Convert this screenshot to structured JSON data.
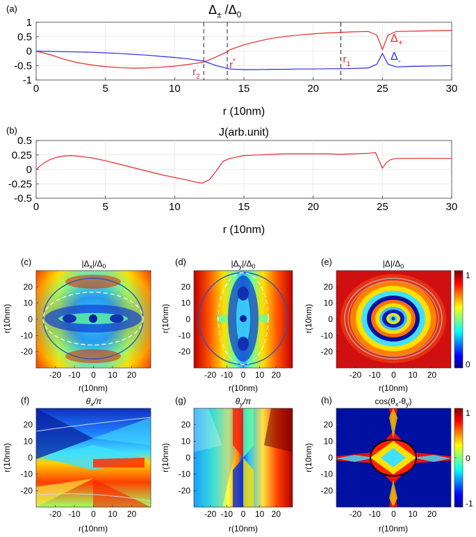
{
  "figure": {
    "panel_a": {
      "label": "(a)",
      "title": "Δ± /Δ0",
      "title_main": "Δ",
      "title_sub1": "±",
      "title_mid": " /Δ",
      "title_sub2": "0",
      "xlabel": "r (10nm)",
      "x_ticks": [
        "0",
        "5",
        "10",
        "15",
        "20",
        "25",
        "30"
      ],
      "y_ticks": [
        "1",
        "0.5",
        "0",
        "-0.5",
        "-1"
      ],
      "markers": [
        {
          "name": "r2",
          "label": "r",
          "sub": "2",
          "x": 12.1
        },
        {
          "name": "rstar",
          "label": "r",
          "sup": "*",
          "x": 13.8
        },
        {
          "name": "r1",
          "label": "r",
          "sub": "1",
          "x": 22.0
        }
      ],
      "legend_plus": {
        "main": "Δ",
        "sub": "+"
      },
      "legend_minus": {
        "main": "Δ",
        "sub": "-"
      }
    },
    "panel_b": {
      "label": "(b)",
      "title": "J(arb.unit)",
      "xlabel": "r (10nm)",
      "x_ticks": [
        "0",
        "5",
        "10",
        "15",
        "20",
        "25",
        "30"
      ],
      "y_ticks": [
        "0.5",
        "0.25",
        "0",
        "-0.25",
        "-0.5"
      ]
    },
    "panels_row1": [
      {
        "label": "(c)",
        "title": "|Δx|/Δ0",
        "t1": "|Δ",
        "tsub1": "x",
        "t2": "|/Δ",
        "tsub2": "0",
        "ylabel": "r(10nm)",
        "xlabel": "r(10nm)"
      },
      {
        "label": "(d)",
        "title": "|Δy|/Δ0",
        "t1": "|Δ",
        "tsub1": "y",
        "t2": "|/Δ",
        "tsub2": "0",
        "ylabel": "r(10nm)",
        "xlabel": "r(10nm)"
      },
      {
        "label": "(e)",
        "title": "|Δ|/Δ0",
        "t1": "|Δ|/Δ",
        "tsub1": "0",
        "t2": "",
        "tsub2": "",
        "ylabel": "r(10nm)",
        "xlabel": "r(10nm)"
      }
    ],
    "panels_row2": [
      {
        "label": "(f)",
        "title": "θx/π",
        "t1": "θ",
        "tsub1": "x",
        "t2": "/π",
        "tsub2": "",
        "ylabel": "r(10nm)",
        "xlabel": "r(10nm)"
      },
      {
        "label": "(g)",
        "title": "θy/π",
        "t1": "θ",
        "tsub1": "y",
        "t2": "/π",
        "tsub2": "",
        "ylabel": "r(10nm)",
        "xlabel": "r(10nm)"
      },
      {
        "label": "(h)",
        "title": "cos(θx-θy)",
        "t1": "cos(θ",
        "tsub1": "x",
        "t2": "-θ",
        "tsub2": "y",
        "t3": ")",
        "ylabel": "r(10nm)",
        "xlabel": "r(10nm)"
      }
    ],
    "map_x_ticks": [
      "-20",
      "-10",
      "0",
      "10",
      "20"
    ],
    "map_y_ticks": [
      "20",
      "10",
      "0",
      "-10",
      "-20"
    ],
    "colorbar_e": {
      "ticks": [
        "1",
        "0"
      ]
    },
    "colorbar_h": {
      "ticks": [
        "1",
        "0",
        "-1"
      ]
    }
  },
  "chart_data": [
    {
      "type": "line",
      "panel": "a",
      "title": "Δ± /Δ0",
      "xlabel": "r (10nm)",
      "ylabel": "",
      "xlim": [
        0,
        30
      ],
      "ylim": [
        -1,
        1
      ],
      "grid": true,
      "x": [
        0,
        1,
        2,
        3,
        4,
        5,
        6,
        7,
        8,
        9,
        10,
        11,
        12,
        12.1,
        13,
        13.8,
        14,
        15,
        16,
        17,
        18,
        19,
        20,
        21,
        22,
        23,
        24,
        24.6,
        25,
        25.4,
        26,
        27,
        28,
        29,
        30
      ],
      "series": [
        {
          "name": "Δ+",
          "color": "#e8272b",
          "values": [
            0,
            -0.12,
            -0.28,
            -0.4,
            -0.48,
            -0.54,
            -0.57,
            -0.59,
            -0.58,
            -0.56,
            -0.52,
            -0.46,
            -0.39,
            -0.38,
            -0.2,
            -0.02,
            0.05,
            0.22,
            0.34,
            0.44,
            0.51,
            0.56,
            0.6,
            0.63,
            0.65,
            0.67,
            0.68,
            0.55,
            0.05,
            0.55,
            0.68,
            0.69,
            0.7,
            0.71,
            0.72
          ]
        },
        {
          "name": "Δ-",
          "color": "#2a2ae8",
          "values": [
            0,
            -0.01,
            -0.02,
            -0.03,
            -0.04,
            -0.06,
            -0.08,
            -0.11,
            -0.14,
            -0.18,
            -0.22,
            -0.27,
            -0.34,
            -0.35,
            -0.5,
            -0.6,
            -0.62,
            -0.64,
            -0.64,
            -0.63,
            -0.63,
            -0.62,
            -0.62,
            -0.61,
            -0.61,
            -0.6,
            -0.58,
            -0.45,
            -0.08,
            -0.45,
            -0.55,
            -0.53,
            -0.52,
            -0.51,
            -0.5
          ]
        }
      ],
      "annotations": [
        "r2",
        "r*",
        "r1",
        "Δ+",
        "Δ-"
      ]
    },
    {
      "type": "line",
      "panel": "b",
      "title": "J(arb.unit)",
      "xlabel": "r (10nm)",
      "ylabel": "",
      "xlim": [
        0,
        30
      ],
      "ylim": [
        -0.5,
        0.5
      ],
      "grid": true,
      "x": [
        0,
        0.5,
        1,
        1.5,
        2,
        2.5,
        3,
        4,
        5,
        6,
        7,
        8,
        9,
        10,
        11,
        11.5,
        12,
        12.5,
        13,
        13.5,
        14,
        15,
        16,
        17,
        18,
        19,
        20,
        21,
        22,
        23,
        24,
        24.5,
        25,
        25.3,
        25.6,
        26,
        27,
        28,
        29,
        30
      ],
      "series": [
        {
          "name": "J",
          "color": "#e8272b",
          "values": [
            0,
            0.1,
            0.17,
            0.21,
            0.23,
            0.24,
            0.23,
            0.2,
            0.15,
            0.09,
            0.03,
            -0.03,
            -0.09,
            -0.14,
            -0.19,
            -0.22,
            -0.24,
            -0.18,
            -0.03,
            0.14,
            0.19,
            0.24,
            0.25,
            0.26,
            0.27,
            0.27,
            0.27,
            0.27,
            0.26,
            0.27,
            0.28,
            0.29,
            0.02,
            0.12,
            0.17,
            0.19,
            0.19,
            0.19,
            0.19,
            0.19
          ]
        }
      ]
    },
    {
      "type": "heatmap",
      "panels": [
        "c",
        "d",
        "e",
        "f",
        "g",
        "h"
      ],
      "xlabel": "r(10nm)",
      "ylabel": "r(10nm)",
      "xlim": [
        -30,
        30
      ],
      "ylim": [
        -30,
        30
      ],
      "colormap": "jet",
      "colorbar_e": [
        0,
        1
      ],
      "colorbar_h": [
        -1,
        1
      ]
    }
  ]
}
